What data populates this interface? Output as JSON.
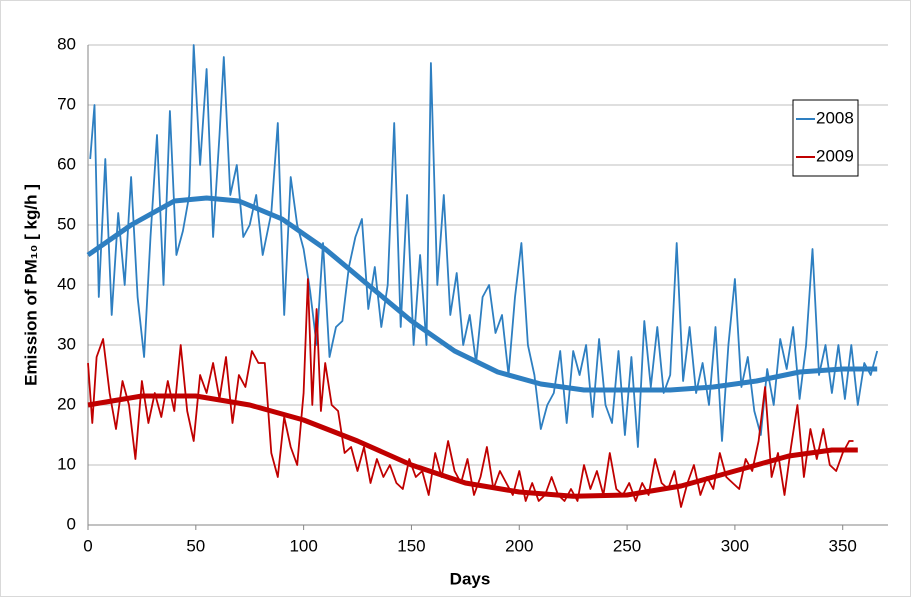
{
  "chart_data": {
    "type": "line",
    "xlabel": "Days",
    "ylabel": "Emission of PM₁₀ [ kg/h ]",
    "xlim": [
      0,
      371
    ],
    "xticks": [
      0,
      50,
      100,
      150,
      200,
      250,
      300,
      350
    ],
    "ylim": [
      0,
      80
    ],
    "yticks": [
      0,
      10,
      20,
      30,
      40,
      50,
      60,
      70,
      80
    ],
    "grid": true,
    "legend": "upper right",
    "series": [
      {
        "name": "2008",
        "color": "#2e7fc1",
        "line_width": 1.8,
        "x": [
          1,
          3,
          5,
          8,
          11,
          14,
          17,
          20,
          23,
          26,
          29,
          32,
          35,
          38,
          41,
          44,
          47,
          49,
          52,
          55,
          58,
          61,
          63,
          66,
          69,
          72,
          75,
          78,
          81,
          85,
          88,
          91,
          94,
          97,
          100,
          103,
          106,
          109,
          112,
          115,
          118,
          121,
          124,
          127,
          130,
          133,
          136,
          139,
          142,
          145,
          148,
          151,
          154,
          157,
          159,
          162,
          165,
          168,
          171,
          174,
          177,
          180,
          183,
          186,
          189,
          192,
          195,
          198,
          201,
          204,
          207,
          210,
          213,
          216,
          219,
          222,
          225,
          228,
          231,
          234,
          237,
          240,
          243,
          246,
          249,
          252,
          255,
          258,
          261,
          264,
          267,
          270,
          273,
          276,
          279,
          282,
          285,
          288,
          291,
          294,
          297,
          300,
          303,
          306,
          309,
          312,
          315,
          318,
          321,
          324,
          327,
          330,
          333,
          336,
          339,
          342,
          345,
          348,
          351,
          354,
          357,
          360,
          363,
          366
        ],
        "values": [
          61,
          70,
          38,
          61,
          35,
          52,
          40,
          58,
          38,
          28,
          48,
          65,
          40,
          69,
          45,
          49,
          55,
          80,
          60,
          76,
          48,
          65,
          78,
          55,
          60,
          48,
          50,
          55,
          45,
          52,
          67,
          35,
          58,
          50,
          46,
          39,
          30,
          47,
          28,
          33,
          34,
          43,
          48,
          51,
          36,
          43,
          33,
          40,
          67,
          33,
          55,
          30,
          45,
          30,
          77,
          40,
          55,
          35,
          42,
          30,
          35,
          27,
          38,
          40,
          32,
          35,
          25,
          38,
          47,
          30,
          25,
          16,
          20,
          22,
          29,
          17,
          29,
          25,
          30,
          18,
          31,
          20,
          17,
          29,
          15,
          28,
          13,
          34,
          23,
          33,
          22,
          25,
          47,
          24,
          33,
          22,
          27,
          20,
          33,
          14,
          30,
          41,
          23,
          28,
          19,
          15,
          26,
          20,
          31,
          26,
          33,
          21,
          30,
          46,
          25,
          30,
          22,
          30,
          21,
          30,
          20,
          27,
          25,
          29
        ]
      },
      {
        "name": "2009",
        "color": "#c00000",
        "line_width": 1.8,
        "x": [
          0,
          2,
          4,
          7,
          10,
          13,
          16,
          19,
          22,
          25,
          28,
          31,
          34,
          37,
          40,
          43,
          46,
          49,
          52,
          55,
          58,
          61,
          64,
          67,
          70,
          73,
          76,
          79,
          82,
          85,
          88,
          91,
          94,
          97,
          100,
          102,
          104,
          106,
          108,
          110,
          113,
          116,
          119,
          122,
          125,
          128,
          131,
          134,
          137,
          140,
          143,
          146,
          149,
          152,
          155,
          158,
          161,
          164,
          167,
          170,
          173,
          176,
          179,
          182,
          185,
          188,
          191,
          194,
          197,
          200,
          203,
          206,
          209,
          212,
          215,
          218,
          221,
          224,
          227,
          230,
          233,
          236,
          239,
          242,
          245,
          248,
          251,
          254,
          257,
          260,
          263,
          266,
          269,
          272,
          275,
          278,
          281,
          284,
          287,
          290,
          293,
          296,
          299,
          302,
          305,
          308,
          311,
          314,
          317,
          320,
          323,
          326,
          329,
          332,
          335,
          338,
          341,
          344,
          347,
          350,
          353,
          355
        ],
        "values": [
          27,
          17,
          28,
          31,
          22,
          16,
          24,
          20,
          11,
          24,
          17,
          22,
          18,
          24,
          19,
          30,
          19,
          14,
          25,
          22,
          27,
          21,
          28,
          17,
          25,
          23,
          29,
          27,
          27,
          12,
          8,
          18,
          13,
          10,
          22,
          41,
          20,
          36,
          19,
          27,
          20,
          19,
          12,
          13,
          9,
          13,
          7,
          11,
          8,
          10,
          7,
          6,
          11,
          8,
          9,
          5,
          12,
          8,
          14,
          9,
          7,
          11,
          5,
          8,
          13,
          6,
          9,
          7,
          5,
          9,
          4,
          7,
          4,
          5,
          8,
          5,
          4,
          6,
          4,
          10,
          6,
          9,
          5,
          12,
          6,
          5,
          7,
          4,
          7,
          5,
          11,
          7,
          6,
          9,
          3,
          7,
          10,
          5,
          8,
          6,
          12,
          8,
          7,
          6,
          11,
          9,
          14,
          23,
          8,
          12,
          5,
          13,
          20,
          8,
          16,
          11,
          16,
          10,
          9,
          12,
          14,
          14
        ]
      },
      {
        "color": "#2e7fc1",
        "line_width": 5,
        "x": [
          0,
          20,
          40,
          55,
          70,
          90,
          110,
          130,
          150,
          170,
          190,
          210,
          230,
          250,
          270,
          290,
          310,
          330,
          350,
          366
        ],
        "values": [
          45,
          50,
          54,
          54.5,
          54,
          51,
          46,
          40,
          34,
          29,
          25.5,
          23.5,
          22.5,
          22.5,
          22.5,
          23,
          24,
          25.5,
          26,
          26
        ]
      },
      {
        "color": "#c00000",
        "line_width": 5,
        "x": [
          0,
          25,
          50,
          75,
          100,
          125,
          150,
          175,
          200,
          225,
          250,
          275,
          300,
          325,
          345,
          357
        ],
        "values": [
          20,
          21.5,
          21.5,
          20,
          17.5,
          14,
          10,
          7,
          5.5,
          4.8,
          5,
          6.5,
          9,
          11.5,
          12.5,
          12.5
        ]
      }
    ]
  }
}
